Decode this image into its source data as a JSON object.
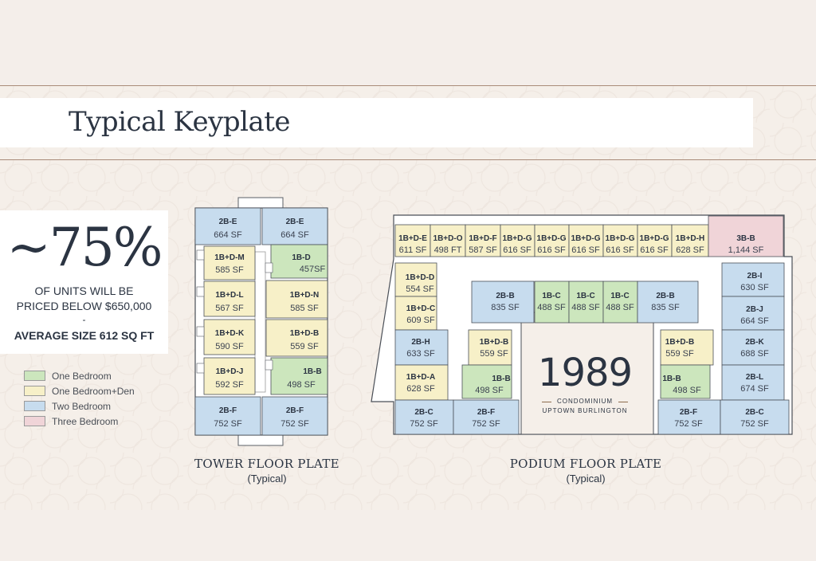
{
  "title": "Typical Keyplate",
  "stat": {
    "percent": "~75%",
    "line1": "OF UNITS WILL BE",
    "line2": "PRICED BELOW $650,000",
    "dash": "-",
    "avg": "AVERAGE SIZE 612 SQ FT"
  },
  "colors": {
    "one_bedroom": "#cce6bd",
    "one_bedroom_den": "#f7f0c8",
    "two_bedroom": "#c7dcee",
    "three_bedroom": "#f0d4d8",
    "ink": "#2b3442",
    "accent": "#8c6b4d"
  },
  "legend": [
    {
      "label": "One Bedroom",
      "type": "one_bedroom"
    },
    {
      "label": "One Bedroom+Den",
      "type": "one_bedroom_den"
    },
    {
      "label": "Two Bedroom",
      "type": "two_bedroom"
    },
    {
      "label": "Three Bedroom",
      "type": "three_bedroom"
    }
  ],
  "tower": {
    "caption": "TOWER FLOOR PLATE",
    "sub": "(Typical)",
    "units": [
      {
        "code": "2B-E",
        "sf": "664 SF",
        "type": "two_bedroom"
      },
      {
        "code": "2B-E",
        "sf": "664 SF",
        "type": "two_bedroom"
      },
      {
        "code": "1B+D-M",
        "sf": "585 SF",
        "type": "one_bedroom_den"
      },
      {
        "code": "1B-D",
        "sf": "457SF",
        "type": "one_bedroom"
      },
      {
        "code": "1B+D-L",
        "sf": "567 SF",
        "type": "one_bedroom_den"
      },
      {
        "code": "1B+D-N",
        "sf": "585 SF",
        "type": "one_bedroom_den"
      },
      {
        "code": "1B+D-K",
        "sf": "590 SF",
        "type": "one_bedroom_den"
      },
      {
        "code": "1B+D-B",
        "sf": "559 SF",
        "type": "one_bedroom_den"
      },
      {
        "code": "1B+D-J",
        "sf": "592 SF",
        "type": "one_bedroom_den"
      },
      {
        "code": "1B-B",
        "sf": "498 SF",
        "type": "one_bedroom"
      },
      {
        "code": "2B-F",
        "sf": "752 SF",
        "type": "two_bedroom"
      },
      {
        "code": "2B-F",
        "sf": "752 SF",
        "type": "two_bedroom"
      }
    ]
  },
  "podium": {
    "caption": "PODIUM FLOOR PLATE",
    "sub": "(Typical)",
    "logo": {
      "number": "1989",
      "line1": "CONDOMINIUM",
      "line2": "UPTOWN BURLINGTON"
    },
    "units": [
      {
        "code": "1B+D-E",
        "sf": "611 SF",
        "type": "one_bedroom_den"
      },
      {
        "code": "1B+D-O",
        "sf": "498 FT",
        "type": "one_bedroom_den"
      },
      {
        "code": "1B+D-F",
        "sf": "587 SF",
        "type": "one_bedroom_den"
      },
      {
        "code": "1B+D-G",
        "sf": "616 SF",
        "type": "one_bedroom_den"
      },
      {
        "code": "1B+D-G",
        "sf": "616 SF",
        "type": "one_bedroom_den"
      },
      {
        "code": "1B+D-G",
        "sf": "616 SF",
        "type": "one_bedroom_den"
      },
      {
        "code": "1B+D-G",
        "sf": "616 SF",
        "type": "one_bedroom_den"
      },
      {
        "code": "1B+D-G",
        "sf": "616 SF",
        "type": "one_bedroom_den"
      },
      {
        "code": "1B+D-H",
        "sf": "628 SF",
        "type": "one_bedroom_den"
      },
      {
        "code": "3B-B",
        "sf": "1,144 SF",
        "type": "three_bedroom"
      },
      {
        "code": "1B+D-D",
        "sf": "554 SF",
        "type": "one_bedroom_den"
      },
      {
        "code": "1B+D-C",
        "sf": "609 SF",
        "type": "one_bedroom_den"
      },
      {
        "code": "2B-H",
        "sf": "633 SF",
        "type": "two_bedroom"
      },
      {
        "code": "1B+D-A",
        "sf": "628 SF",
        "type": "one_bedroom_den"
      },
      {
        "code": "2B-C",
        "sf": "752 SF",
        "type": "two_bedroom"
      },
      {
        "code": "2B-F",
        "sf": "752 SF",
        "type": "two_bedroom"
      },
      {
        "code": "2B-B",
        "sf": "835 SF",
        "type": "two_bedroom"
      },
      {
        "code": "1B-C",
        "sf": "488 SF",
        "type": "one_bedroom"
      },
      {
        "code": "1B-C",
        "sf": "488 SF",
        "type": "one_bedroom"
      },
      {
        "code": "1B-C",
        "sf": "488 SF",
        "type": "one_bedroom"
      },
      {
        "code": "2B-B",
        "sf": "835 SF",
        "type": "two_bedroom"
      },
      {
        "code": "1B+D-B",
        "sf": "559 SF",
        "type": "one_bedroom_den"
      },
      {
        "code": "1B-B",
        "sf": "498 SF",
        "type": "one_bedroom"
      },
      {
        "code": "1B+D-B",
        "sf": "559 SF",
        "type": "one_bedroom_den"
      },
      {
        "code": "1B-B",
        "sf": "498 SF",
        "type": "one_bedroom"
      },
      {
        "code": "2B-I",
        "sf": "630 SF",
        "type": "two_bedroom"
      },
      {
        "code": "2B-J",
        "sf": "664 SF",
        "type": "two_bedroom"
      },
      {
        "code": "2B-K",
        "sf": "688 SF",
        "type": "two_bedroom"
      },
      {
        "code": "2B-L",
        "sf": "674 SF",
        "type": "two_bedroom"
      },
      {
        "code": "2B-F",
        "sf": "752 SF",
        "type": "two_bedroom"
      },
      {
        "code": "2B-C",
        "sf": "752 SF",
        "type": "two_bedroom"
      }
    ]
  }
}
